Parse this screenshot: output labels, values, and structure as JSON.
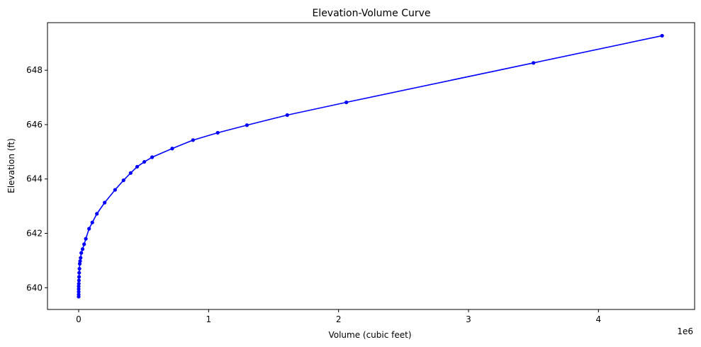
{
  "chart_data": {
    "type": "line",
    "title": "Elevation-Volume Curve",
    "xlabel": "Volume (cubic feet)",
    "ylabel": "Elevation (ft)",
    "x_offset_label": "1e6",
    "xlim": [
      -0.24,
      4.74
    ],
    "ylim": [
      639.2,
      649.75
    ],
    "x_ticks": [
      0,
      1,
      2,
      3,
      4
    ],
    "x_tick_labels": [
      "0",
      "1",
      "2",
      "3",
      "4"
    ],
    "y_ticks": [
      640,
      642,
      644,
      646,
      648
    ],
    "y_tick_labels": [
      "640",
      "642",
      "644",
      "646",
      "648"
    ],
    "grid": false,
    "legend": "none",
    "series": [
      {
        "color": "#0000ff",
        "marker": "circle",
        "x": [
          0,
          0,
          0,
          0,
          0,
          0.001,
          0.002,
          0.003,
          0.004,
          0.006,
          0.008,
          0.011,
          0.015,
          0.02,
          0.03,
          0.042,
          0.055,
          0.08,
          0.105,
          0.14,
          0.2,
          0.28,
          0.345,
          0.4,
          0.45,
          0.505,
          0.565,
          0.72,
          0.88,
          1.07,
          1.295,
          1.605,
          2.06,
          3.5,
          4.49
        ],
        "y": [
          639.67,
          639.75,
          639.85,
          639.95,
          640.05,
          640.15,
          640.27,
          640.4,
          640.55,
          640.7,
          640.88,
          640.98,
          641.1,
          641.28,
          641.42,
          641.6,
          641.8,
          642.17,
          642.4,
          642.72,
          643.13,
          643.6,
          643.95,
          644.22,
          644.45,
          644.63,
          644.8,
          645.12,
          645.43,
          645.7,
          645.98,
          646.35,
          646.82,
          648.27,
          649.27
        ]
      }
    ]
  }
}
